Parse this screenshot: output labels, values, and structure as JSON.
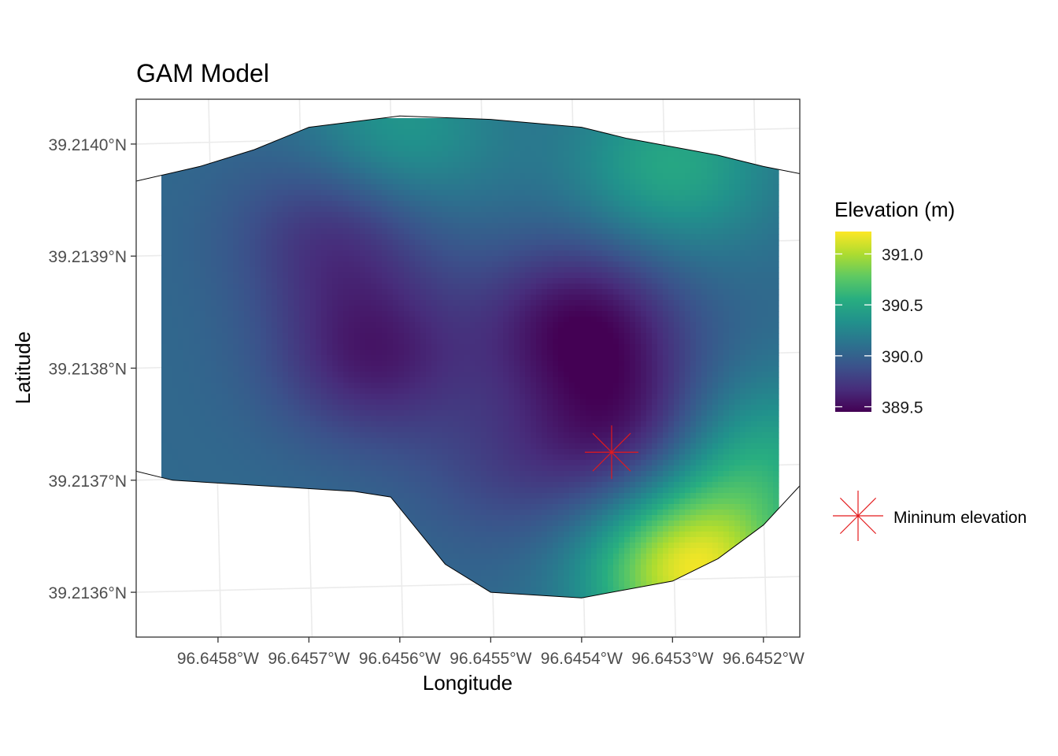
{
  "chart_data": {
    "type": "heatmap",
    "title": "GAM Model",
    "xlabel": "Longitude",
    "ylabel": "Latitude",
    "x_tick_labels": [
      "96.6458°W",
      "96.6457°W",
      "96.6456°W",
      "96.6455°W",
      "96.6454°W",
      "96.6453°W",
      "96.6452°W"
    ],
    "x_ticks": [
      -96.6458,
      -96.6457,
      -96.6456,
      -96.6455,
      -96.6454,
      -96.6453,
      -96.6452
    ],
    "y_tick_labels": [
      "39.2140°N",
      "39.2139°N",
      "39.2138°N",
      "39.2137°N",
      "39.2136°N"
    ],
    "y_ticks": [
      39.214,
      39.2139,
      39.2138,
      39.2137,
      39.2136
    ],
    "xlim": [
      -96.64589,
      -96.64516
    ],
    "ylim": [
      39.21356,
      39.21404
    ],
    "grid": true,
    "colorscale": "viridis",
    "fill_legend": {
      "title": "Elevation (m)",
      "breaks": [
        391.0,
        390.5,
        390.0,
        389.5
      ],
      "break_labels": [
        "391.0",
        "390.5",
        "390.0",
        "389.5"
      ],
      "range": [
        389.45,
        391.22
      ]
    },
    "surface": {
      "base_elevation": 390.05,
      "features": [
        {
          "kind": "depression",
          "lon": -96.64567,
          "lat": 39.21392,
          "amplitude": -0.35
        },
        {
          "kind": "depression",
          "lon": -96.64563,
          "lat": 39.21381,
          "amplitude": -0.45
        },
        {
          "kind": "depression",
          "lon": -96.6454,
          "lat": 39.21384,
          "amplitude": -0.55
        },
        {
          "kind": "depression",
          "lon": -96.64534,
          "lat": 39.21374,
          "amplitude": -0.5
        },
        {
          "kind": "depression",
          "lon": -96.64548,
          "lat": 39.21371,
          "amplitude": -0.2
        },
        {
          "kind": "rise",
          "lon": -96.6453,
          "lat": 39.21398,
          "amplitude": 0.45
        },
        {
          "kind": "rise",
          "lon": -96.6456,
          "lat": 39.21401,
          "amplitude": 0.35
        },
        {
          "kind": "rise",
          "lon": -96.64528,
          "lat": 39.21362,
          "amplitude": 1.1
        },
        {
          "kind": "rise",
          "lon": -96.64522,
          "lat": 39.21372,
          "amplitude": 0.5
        }
      ]
    },
    "boundary": [
      [
        -96.6456,
        39.214025
      ],
      [
        -96.6455,
        39.214022
      ],
      [
        -96.6454,
        39.214015
      ],
      [
        -96.64535,
        39.214005
      ],
      [
        -96.64525,
        39.21399
      ],
      [
        -96.6452,
        39.21398
      ],
      [
        -96.64515,
        39.213972
      ],
      [
        -96.6451,
        39.21396
      ],
      [
        -96.64507,
        39.213945
      ],
      [
        -96.64505,
        39.213925
      ],
      [
        -96.64503,
        39.2139
      ],
      [
        -96.64502,
        39.21387
      ],
      [
        -96.64502,
        39.21384
      ],
      [
        -96.64504,
        39.21381
      ],
      [
        -96.64507,
        39.213775
      ],
      [
        -96.64511,
        39.213735
      ],
      [
        -96.64516,
        39.213695
      ],
      [
        -96.6452,
        39.21366
      ],
      [
        -96.64525,
        39.21363
      ],
      [
        -96.6453,
        39.21361
      ],
      [
        -96.6454,
        39.213595
      ],
      [
        -96.6455,
        39.2136
      ],
      [
        -96.64555,
        39.213625
      ],
      [
        -96.64558,
        39.213655
      ],
      [
        -96.64561,
        39.213685
      ],
      [
        -96.64565,
        39.21369
      ],
      [
        -96.64575,
        39.213695
      ],
      [
        -96.64585,
        39.2137
      ],
      [
        -96.64595,
        39.21372
      ],
      [
        -96.64603,
        39.21375
      ],
      [
        -96.64608,
        39.21378
      ],
      [
        -96.64612,
        39.21381
      ],
      [
        -96.64613,
        39.21385
      ],
      [
        -96.64611,
        39.21388
      ],
      [
        -96.64605,
        39.21391
      ],
      [
        -96.64597,
        39.21394
      ],
      [
        -96.6459,
        39.213965
      ],
      [
        -96.64582,
        39.21398
      ],
      [
        -96.64576,
        39.213995
      ],
      [
        -96.6457,
        39.214015
      ]
    ],
    "annotation": {
      "label": "Mininum elevation",
      "lon": -96.645367,
      "lat": 39.213725,
      "color": "#e41a1c"
    }
  }
}
